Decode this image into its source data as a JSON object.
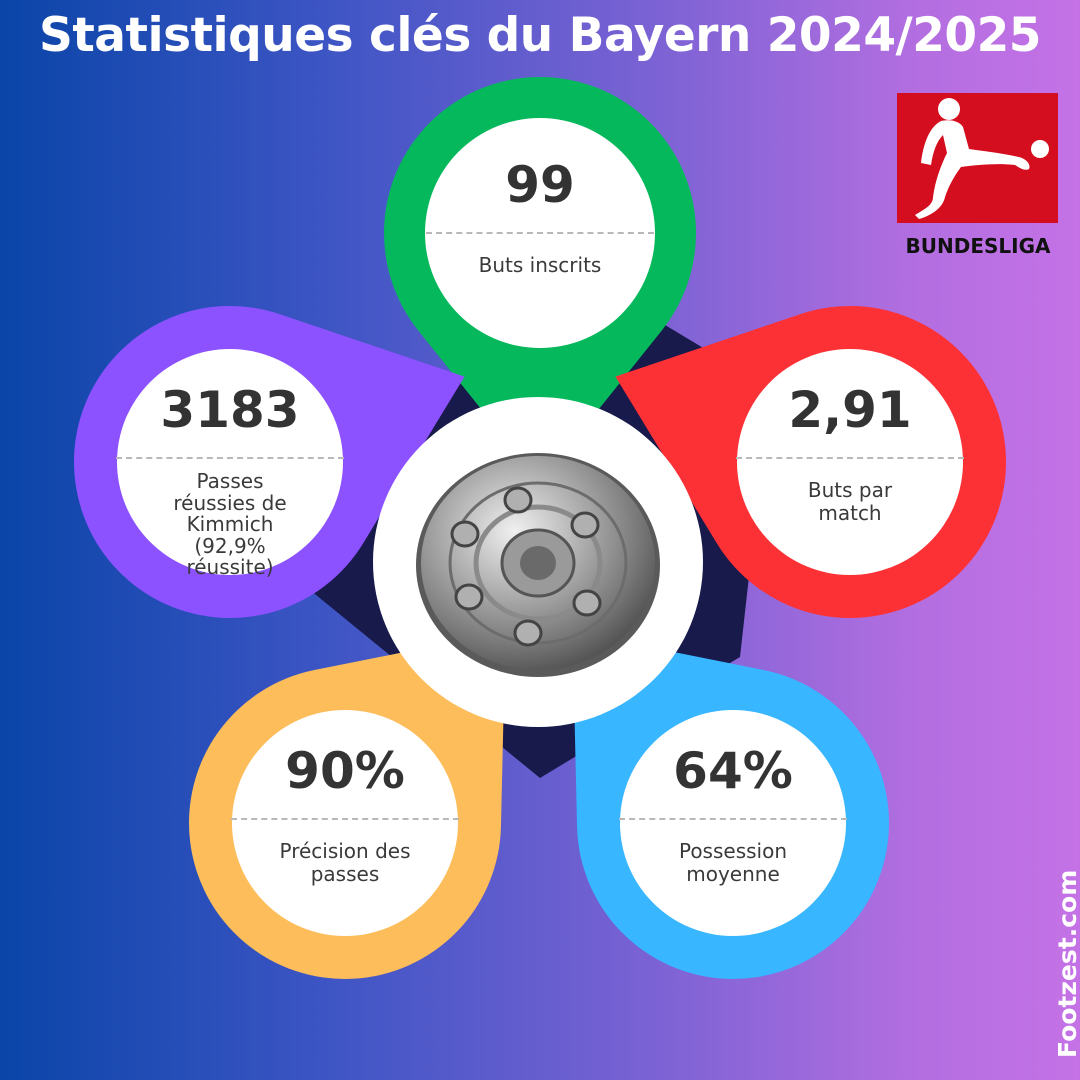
{
  "header": {
    "title": "Statistiques clés du Bayern 2024/2025"
  },
  "logo": {
    "icon": "bundesliga-player-icon",
    "text": "BUNDESLIGA",
    "color": "#d40e1e"
  },
  "center": {
    "icon": "meisterschale-trophy-icon"
  },
  "stats": [
    {
      "id": "goals",
      "value": "99",
      "label": "Buts inscrits",
      "color": "#05b85c"
    },
    {
      "id": "goals-per-match",
      "value": "2,91",
      "label": "Buts par\nmatch",
      "color": "#fc3136"
    },
    {
      "id": "possession",
      "value": "64%",
      "label": "Possession\nmoyenne",
      "color": "#38b6ff"
    },
    {
      "id": "pass-accuracy",
      "value": "90%",
      "label": "Précision des\npasses",
      "color": "#fdbd5a"
    },
    {
      "id": "kimmich-passes",
      "value": "3183",
      "label": "Passes\nréussies de\nKimmich\n(92,9%\nréussite)",
      "color": "#8c52ff"
    }
  ],
  "watermark": "Footzest.com"
}
